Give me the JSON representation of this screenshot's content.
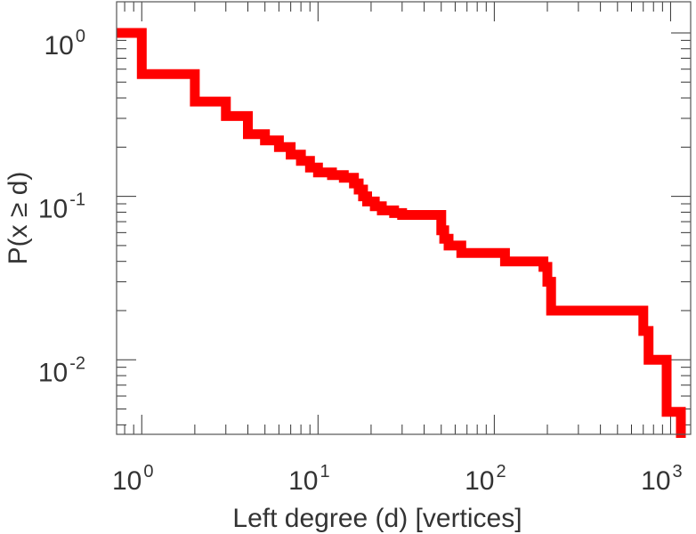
{
  "chart_data": {
    "type": "line",
    "title": "",
    "xlabel": "Left degree (d) [vertices]",
    "ylabel": "P(x ≥ d)",
    "x_scale": "log",
    "y_scale": "log",
    "xlim": [
      0.72,
      1300
    ],
    "ylim": [
      0.0035,
      1.55
    ],
    "grid": false,
    "legend": "none",
    "x_ticks": [
      {
        "base": "10",
        "exp": "0",
        "value": 1
      },
      {
        "base": "10",
        "exp": "1",
        "value": 10
      },
      {
        "base": "10",
        "exp": "2",
        "value": 100
      },
      {
        "base": "10",
        "exp": "3",
        "value": 1000
      }
    ],
    "y_ticks": [
      {
        "base": "10",
        "exp": "0",
        "value": 1
      },
      {
        "base": "10",
        "exp": "-1",
        "value": 0.1
      },
      {
        "base": "10",
        "exp": "-2",
        "value": 0.01
      }
    ],
    "series": [
      {
        "color": "#ff0000",
        "step": "ccdf",
        "x": [
          0.72,
          1,
          2,
          3,
          4,
          5,
          6,
          7,
          8,
          9,
          10,
          12,
          14,
          16,
          17,
          18,
          19,
          21,
          23,
          27,
          30,
          40,
          50,
          52,
          55,
          65,
          100,
          115,
          190,
          200,
          210,
          680,
          700,
          750,
          950
        ],
        "y": [
          1.0,
          0.56,
          0.38,
          0.31,
          0.24,
          0.22,
          0.2,
          0.18,
          0.165,
          0.15,
          0.14,
          0.135,
          0.13,
          0.12,
          0.11,
          0.1,
          0.093,
          0.087,
          0.082,
          0.079,
          0.077,
          0.077,
          0.062,
          0.055,
          0.05,
          0.045,
          0.045,
          0.04,
          0.037,
          0.03,
          0.02,
          0.02,
          0.015,
          0.01,
          0.0048
        ]
      }
    ]
  }
}
